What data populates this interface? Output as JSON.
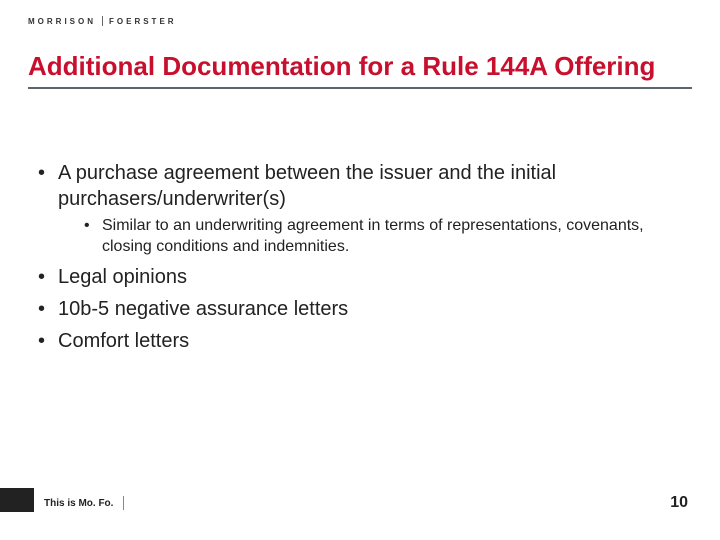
{
  "logo": {
    "left": "MORRISON",
    "right": "FOERSTER"
  },
  "title": "Additional Documentation for a Rule 144A Offering",
  "colors": {
    "title": "#c8102e",
    "underline": "#5b6770",
    "text": "#222222",
    "footer_bar": "#222222",
    "background": "#ffffff"
  },
  "bullets": [
    {
      "text": "A purchase agreement between the issuer and the initial purchasers/underwriter(s)",
      "children": [
        {
          "text": "Similar to an underwriting agreement in terms of representations, covenants, closing conditions and indemnities."
        }
      ]
    },
    {
      "text": "Legal opinions"
    },
    {
      "text": "10b-5 negative assurance letters"
    },
    {
      "text": "Comfort letters"
    }
  ],
  "footer": {
    "tagline": "This is Mo. Fo."
  },
  "page_number": "10",
  "typography": {
    "title_fontsize": 26,
    "body_fontsize": 20,
    "sub_fontsize": 16,
    "footer_fontsize": 10,
    "page_num_fontsize": 16
  }
}
